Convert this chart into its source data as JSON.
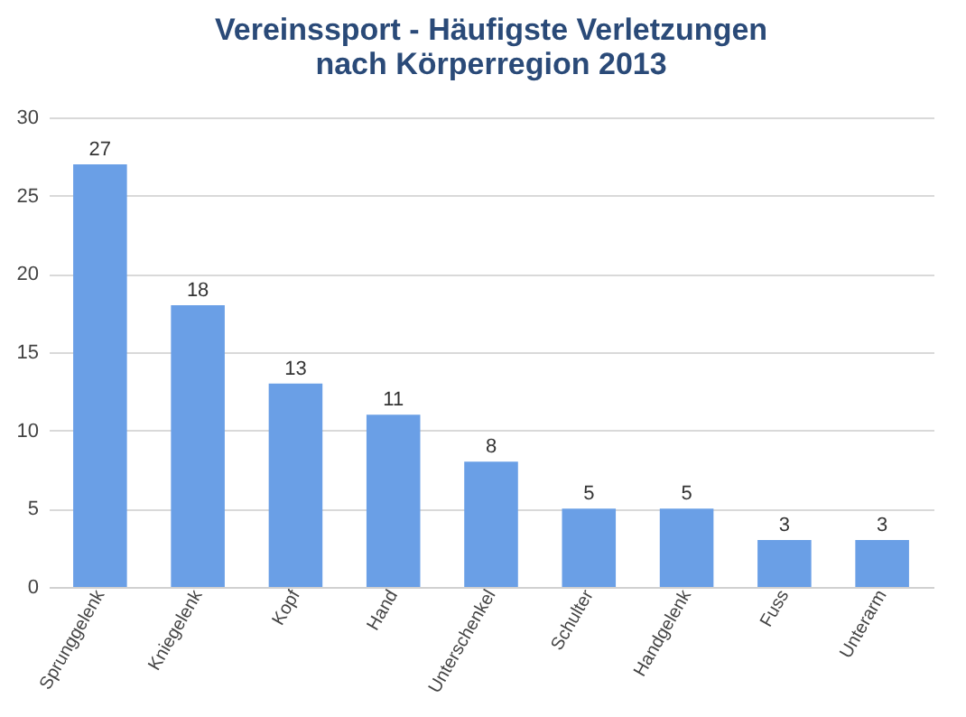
{
  "chart_data": {
    "type": "bar",
    "title": "Vereinssport  - Häufigste Verletzungen nach Körperregion 2013",
    "categories": [
      "Sprunggelenk",
      "Kniegelenk",
      "Kopf",
      "Hand",
      "Unterschenkel",
      "Schulter",
      "Handgelenk",
      "Fuss",
      "Unterarm"
    ],
    "values": [
      27,
      18,
      13,
      11,
      8,
      5,
      5,
      3,
      3
    ],
    "color": "#6a9fe6",
    "ylim": [
      0,
      30
    ],
    "yticks": [
      0,
      5,
      10,
      15,
      20,
      25,
      30
    ],
    "grid": "y",
    "data_labels": true
  }
}
